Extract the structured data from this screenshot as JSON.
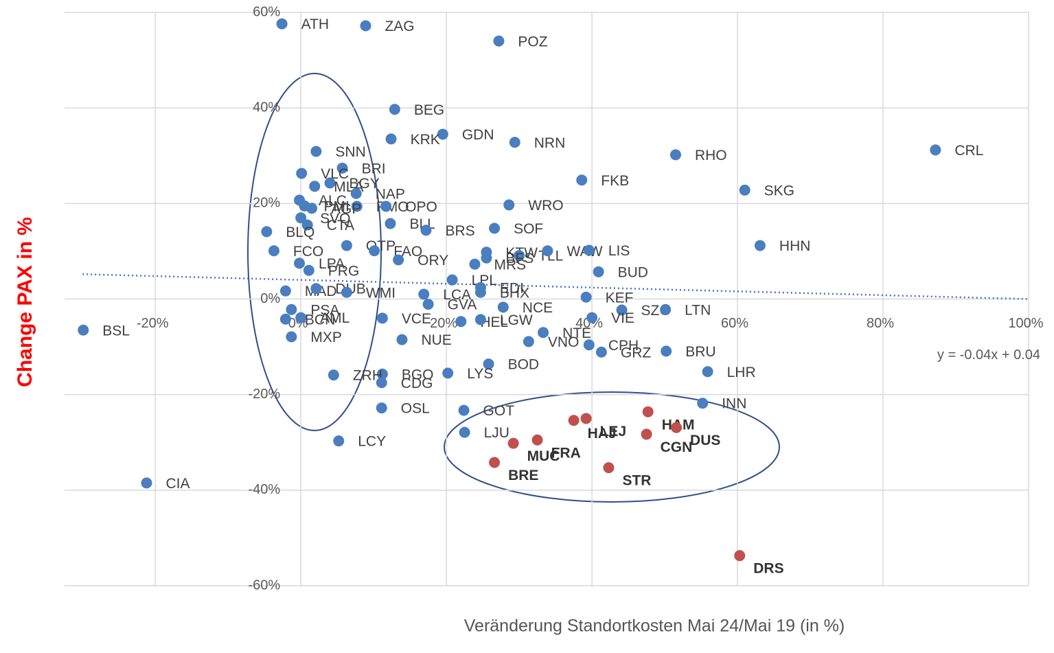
{
  "chart_data": {
    "type": "scatter",
    "x_label": "Veränderung Standortkosten Mai 24/Mai 19 (in %)",
    "y_label": "Change PAX  in %",
    "xlim": [
      -32,
      100
    ],
    "ylim": [
      -60,
      60
    ],
    "xticks": [
      {
        "value": -20,
        "label": "-20%"
      },
      {
        "value": 0,
        "label": "0%"
      },
      {
        "value": 20,
        "label": "20%"
      },
      {
        "value": 40,
        "label": "40%"
      },
      {
        "value": 60,
        "label": "60%"
      },
      {
        "value": 80,
        "label": "80%"
      },
      {
        "value": 100,
        "label": "100%"
      }
    ],
    "yticks": [
      {
        "value": -60,
        "label": "-60%"
      },
      {
        "value": -40,
        "label": "-40%"
      },
      {
        "value": -20,
        "label": "-20%"
      },
      {
        "value": 0,
        "label": "0%"
      },
      {
        "value": 20,
        "label": "20%"
      },
      {
        "value": 40,
        "label": "40%"
      },
      {
        "value": 60,
        "label": "60%"
      }
    ],
    "grid": true,
    "trendline": {
      "slope": -0.04,
      "intercept": 4,
      "label": "y = -0.04x + 0.04"
    },
    "series": [
      {
        "color": "#4a7ebf",
        "labels": [
          "ATH",
          "ZAG",
          "POZ",
          "BEG",
          "GDN",
          "KRK",
          "NRN",
          "SNN",
          "CRL",
          "RHO",
          "BRI",
          "VLC",
          "BGY",
          "MLA",
          "NAP",
          "FKB",
          "SKG",
          "ALC",
          "WRO",
          "PMO",
          "OPO",
          "PMI",
          "AGP",
          "SVQ",
          "CTA",
          "BLQ",
          "BLL",
          "BRS",
          "SOF",
          "HHN",
          "FCO",
          "OTP",
          "FAO",
          "ORY",
          "KTW",
          "TLL",
          "WAW",
          "LIS",
          "BFS",
          "MRS",
          "LPL",
          "EDI",
          "BUD",
          "LPA",
          "PRG",
          "MAD",
          "DUB",
          "WMI",
          "LCA",
          "BHX",
          "KEF",
          "GVA",
          "NCE",
          "SZG",
          "LTN",
          "VIE",
          "PSA",
          "BCN",
          "AML",
          "VCE",
          "HEL",
          "LGW",
          "NTE",
          "MXP",
          "BSL",
          "NUE",
          "VNO",
          "CPH",
          "GRZ",
          "BRU",
          "BOD",
          "LYS",
          "BGO",
          "ZRH",
          "CDG",
          "LHR",
          "INN",
          "OSL",
          "GOT",
          "LJU",
          "LCY",
          "CIA"
        ],
        "x": [
          -2.6,
          8.9,
          27.2,
          12.9,
          19.5,
          12.4,
          29.4,
          2.1,
          87.2,
          51.5,
          5.7,
          0.1,
          4.0,
          1.9,
          7.6,
          38.6,
          61.0,
          -0.2,
          28.6,
          7.7,
          11.7,
          0.5,
          1.5,
          0,
          0.9,
          -4.7,
          12.3,
          17.2,
          26.6,
          63.1,
          -3.7,
          6.3,
          10.1,
          13.4,
          25.5,
          30.0,
          33.9,
          39.6,
          25.5,
          23.9,
          20.8,
          24.7,
          40.9,
          -0.2,
          1.1,
          -2.1,
          2.1,
          6.3,
          16.9,
          24.7,
          39.2,
          17.5,
          27.8,
          44.1,
          50.1,
          40.0,
          -1.3,
          -2.1,
          0,
          11.2,
          22.0,
          24.7,
          33.3,
          -1.3,
          -29.9,
          13.9,
          31.3,
          39.6,
          41.3,
          50.2,
          25.8,
          20.2,
          11.2,
          4.5,
          11.1,
          55.9,
          55.2,
          11.1,
          22.4,
          22.5,
          5.2,
          -21.2
        ],
        "values": [
          57.6,
          57.2,
          54.0,
          39.7,
          34.5,
          33.5,
          32.8,
          30.9,
          31.2,
          30.2,
          27.4,
          26.3,
          24.3,
          23.6,
          22.1,
          24.9,
          22.8,
          20.7,
          19.7,
          19.4,
          19.4,
          19.5,
          19.0,
          17.0,
          15.5,
          14.1,
          15.8,
          14.4,
          14.8,
          11.2,
          10.1,
          11.2,
          10.1,
          8.2,
          9.8,
          9.1,
          10.1,
          10.2,
          8.6,
          7.3,
          4.0,
          2.4,
          5.7,
          7.5,
          6.0,
          1.7,
          2.2,
          1.4,
          1.0,
          1.4,
          0.4,
          -1.1,
          -1.7,
          -2.3,
          -2.2,
          -3.9,
          -2.2,
          -4.2,
          -3.9,
          -4.0,
          -4.7,
          -4.3,
          -7.0,
          -7.9,
          -6.5,
          -8.5,
          -8.9,
          -9.6,
          -11.1,
          -10.9,
          -13.6,
          -15.5,
          -15.7,
          -15.9,
          -17.5,
          -15.2,
          -21.8,
          -22.8,
          -23.3,
          -27.9,
          -29.7,
          -38.5
        ]
      },
      {
        "color": "#c0504d",
        "labels": [
          "HAJ",
          "LEJ",
          "HAM",
          "DUS",
          "FRA",
          "MUC",
          "CGN",
          "BRE",
          "STR",
          "DRS"
        ],
        "x": [
          37.5,
          39.2,
          47.7,
          51.6,
          32.5,
          29.2,
          47.5,
          26.6,
          42.3,
          60.3
        ],
        "values": [
          -25.4,
          -25.0,
          -23.6,
          -26.9,
          -29.5,
          -30.2,
          -28.3,
          -34.2,
          -35.3,
          -53.7
        ]
      }
    ]
  }
}
